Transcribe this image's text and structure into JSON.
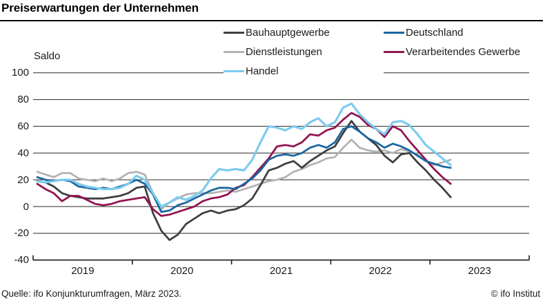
{
  "title": "Preiserwartungen der Unternehmen",
  "footer": {
    "source": "Quelle: ifo Konjunkturumfragen, März 2023.",
    "copyright": "© ifo Institut"
  },
  "colors": {
    "axis": "#1a1a1a",
    "grid": "#262626",
    "bauhauptgewerbe": "#3f3f3f",
    "deutschland": "#1a669f",
    "dienstleistungen": "#b3b3b3",
    "verarbeitendes_gewerbe": "#93134f",
    "handel": "#7dcbee"
  },
  "chart_data": {
    "type": "line",
    "title": "Preiserwartungen der Unternehmen",
    "ylabel": "Saldo",
    "xlabel": "",
    "ylim": [
      -40,
      100
    ],
    "yticks": [
      100,
      80,
      60,
      40,
      20,
      0,
      -20,
      -40
    ],
    "grid": "horizontal",
    "legend_position": "top",
    "x_start": "2019-01",
    "x_end": "2023-03",
    "x_frequency": "monthly",
    "xticks": [
      "2019",
      "2020",
      "2021",
      "2022",
      "2023"
    ],
    "series": [
      {
        "name": "Bauhauptgewerbe",
        "color": "#3f3f3f",
        "values": [
          19,
          18,
          15,
          10,
          8,
          7,
          6,
          6,
          6,
          7,
          8,
          10,
          14,
          15,
          -5,
          -18,
          -25,
          -21,
          -13,
          -9,
          -5,
          -3,
          -5,
          -3,
          -2,
          1,
          6,
          16,
          27,
          29,
          32,
          34,
          29,
          34,
          38,
          42,
          45,
          55,
          64,
          56,
          51,
          46,
          38,
          33,
          39,
          40,
          33,
          27,
          20,
          14,
          7
        ]
      },
      {
        "name": "Deutschland",
        "color": "#1a669f",
        "values": [
          22,
          20,
          19,
          20,
          19,
          15,
          14,
          13,
          14,
          13,
          15,
          17,
          20,
          17,
          9,
          -4,
          -3,
          1,
          3,
          6,
          9,
          12,
          14,
          14,
          13,
          17,
          21,
          27,
          35,
          38,
          39,
          38,
          40,
          44,
          46,
          44,
          48,
          58,
          60,
          56,
          51,
          48,
          44,
          47,
          45,
          42,
          38,
          34,
          32,
          30,
          29
        ]
      },
      {
        "name": "Dienstleistungen",
        "color": "#b3b3b3",
        "values": [
          26,
          24,
          22,
          25,
          25,
          21,
          20,
          19,
          21,
          19,
          21,
          25,
          26,
          24,
          10,
          -2,
          3,
          6,
          9,
          10,
          10,
          10,
          11,
          12,
          11,
          13,
          15,
          17,
          19,
          20,
          22,
          26,
          28,
          31,
          33,
          36,
          37,
          44,
          50,
          44,
          42,
          41,
          42,
          40,
          43,
          41,
          39,
          34,
          31,
          33,
          35
        ]
      },
      {
        "name": "Verarbeitendes Gewerbe",
        "color": "#93134f",
        "values": [
          17,
          13,
          10,
          4,
          8,
          8,
          5,
          2,
          1,
          2,
          4,
          5,
          6,
          7,
          -2,
          -7,
          -6,
          -4,
          -2,
          0,
          4,
          6,
          7,
          9,
          14,
          16,
          22,
          29,
          36,
          45,
          46,
          45,
          48,
          54,
          53,
          57,
          59,
          65,
          70,
          67,
          61,
          58,
          52,
          60,
          57,
          49,
          42,
          35,
          28,
          22,
          17
        ]
      },
      {
        "name": "Handel",
        "color": "#7dcbee",
        "values": [
          19,
          18,
          19,
          20,
          20,
          17,
          15,
          14,
          13,
          13,
          14,
          17,
          23,
          20,
          10,
          0,
          3,
          7,
          5,
          8,
          12,
          21,
          28,
          27,
          28,
          27,
          35,
          48,
          60,
          59,
          57,
          60,
          58,
          63,
          66,
          60,
          63,
          74,
          77,
          69,
          63,
          58,
          54,
          63,
          64,
          61,
          54,
          46,
          41,
          36,
          31
        ]
      }
    ]
  }
}
